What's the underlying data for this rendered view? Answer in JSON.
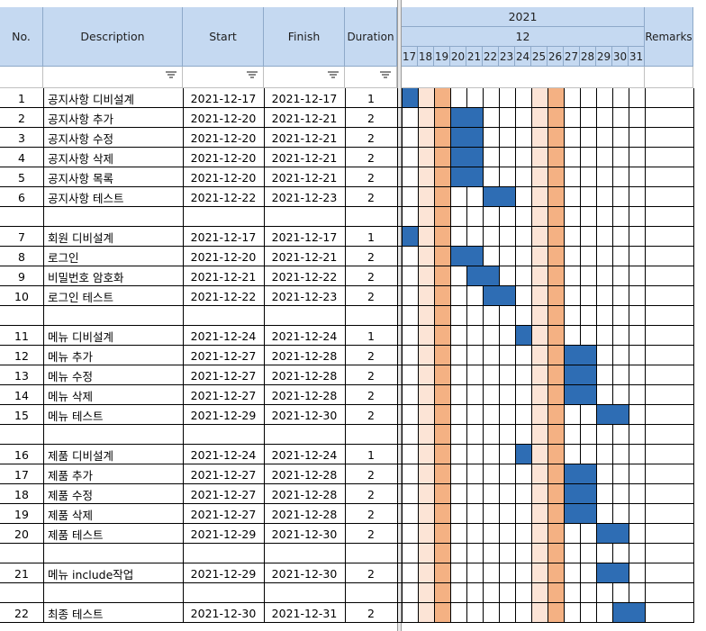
{
  "headers": {
    "no": "No.",
    "description": "Description",
    "start": "Start",
    "finish": "Finish",
    "duration": "Duration",
    "year": "2021",
    "month": "12",
    "remarks": "Remarks",
    "days": [
      "17",
      "18",
      "19",
      "20",
      "21",
      "22",
      "23",
      "24",
      "25",
      "26",
      "27",
      "28",
      "29",
      "30",
      "31"
    ]
  },
  "colors": {
    "header_bg": "#c5d9f1",
    "bar": "#2e6db4",
    "sunday": "#f4b183",
    "saturday": "#fce4d6",
    "border_dark": "#000000"
  },
  "weekend_days": {
    "saturday": [
      "18",
      "25"
    ],
    "sunday": [
      "19",
      "26"
    ]
  },
  "tasks": [
    {
      "no": "1",
      "desc": "공지사항 디비설계",
      "start": "2021-12-17",
      "finish": "2021-12-17",
      "duration": "1"
    },
    {
      "no": "2",
      "desc": "공지사항 추가",
      "start": "2021-12-20",
      "finish": "2021-12-21",
      "duration": "2"
    },
    {
      "no": "3",
      "desc": "공지사항 수정",
      "start": "2021-12-20",
      "finish": "2021-12-21",
      "duration": "2"
    },
    {
      "no": "4",
      "desc": "공지사항 삭제",
      "start": "2021-12-20",
      "finish": "2021-12-21",
      "duration": "2"
    },
    {
      "no": "5",
      "desc": "공지사항 목록",
      "start": "2021-12-20",
      "finish": "2021-12-21",
      "duration": "2"
    },
    {
      "no": "6",
      "desc": "공지사항 테스트",
      "start": "2021-12-22",
      "finish": "2021-12-23",
      "duration": "2"
    },
    null,
    {
      "no": "7",
      "desc": "회원 디비설계",
      "start": "2021-12-17",
      "finish": "2021-12-17",
      "duration": "1"
    },
    {
      "no": "8",
      "desc": "로그인",
      "start": "2021-12-20",
      "finish": "2021-12-21",
      "duration": "2"
    },
    {
      "no": "9",
      "desc": "비밀번호 암호화",
      "start": "2021-12-21",
      "finish": "2021-12-22",
      "duration": "2"
    },
    {
      "no": "10",
      "desc": "로그인 테스트",
      "start": "2021-12-22",
      "finish": "2021-12-23",
      "duration": "2"
    },
    null,
    {
      "no": "11",
      "desc": "메뉴 디비설계",
      "start": "2021-12-24",
      "finish": "2021-12-24",
      "duration": "1"
    },
    {
      "no": "12",
      "desc": "메뉴 추가",
      "start": "2021-12-27",
      "finish": "2021-12-28",
      "duration": "2"
    },
    {
      "no": "13",
      "desc": "메뉴 수정",
      "start": "2021-12-27",
      "finish": "2021-12-28",
      "duration": "2"
    },
    {
      "no": "14",
      "desc": "메뉴 삭제",
      "start": "2021-12-27",
      "finish": "2021-12-28",
      "duration": "2"
    },
    {
      "no": "15",
      "desc": "메뉴 테스트",
      "start": "2021-12-29",
      "finish": "2021-12-30",
      "duration": "2"
    },
    null,
    {
      "no": "16",
      "desc": "제품 디비설계",
      "start": "2021-12-24",
      "finish": "2021-12-24",
      "duration": "1"
    },
    {
      "no": "17",
      "desc": "제품 추가",
      "start": "2021-12-27",
      "finish": "2021-12-28",
      "duration": "2"
    },
    {
      "no": "18",
      "desc": "제품 수정",
      "start": "2021-12-27",
      "finish": "2021-12-28",
      "duration": "2"
    },
    {
      "no": "19",
      "desc": "제품 삭제",
      "start": "2021-12-27",
      "finish": "2021-12-28",
      "duration": "2"
    },
    {
      "no": "20",
      "desc": "제품 테스트",
      "start": "2021-12-29",
      "finish": "2021-12-30",
      "duration": "2"
    },
    null,
    {
      "no": "21",
      "desc": "메뉴 include작업",
      "start": "2021-12-29",
      "finish": "2021-12-30",
      "duration": "2"
    },
    null,
    {
      "no": "22",
      "desc": "최종 테스트",
      "start": "2021-12-30",
      "finish": "2021-12-31",
      "duration": "2"
    }
  ]
}
